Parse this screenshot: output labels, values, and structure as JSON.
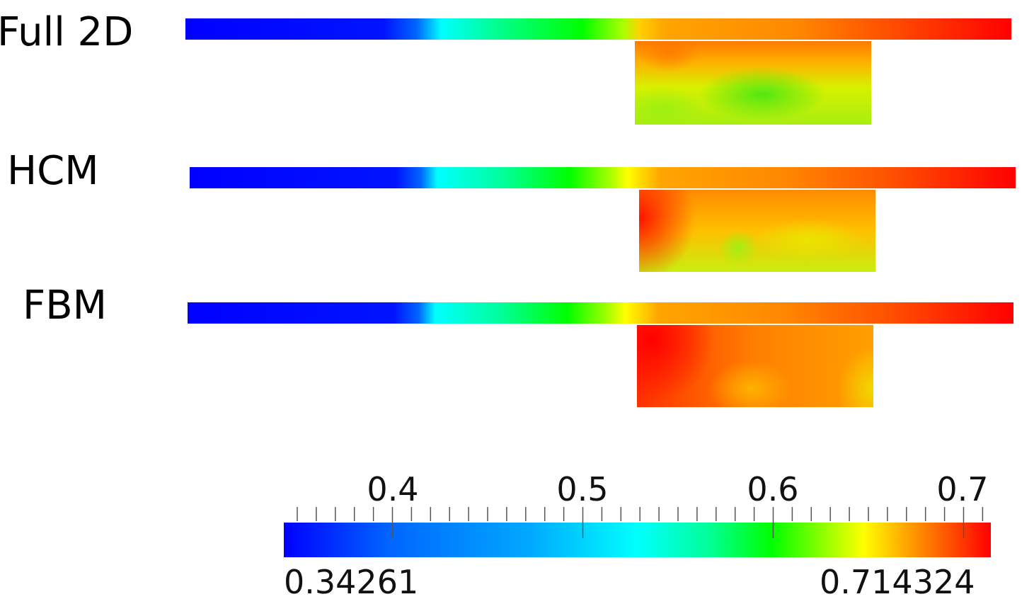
{
  "rows": [
    {
      "label": "Full 2D"
    },
    {
      "label": "HCM"
    },
    {
      "label": "FBM"
    }
  ],
  "colorbar": {
    "min_label": "0.34261",
    "max_label": "0.714324",
    "tick_labels": [
      "0.4",
      "0.5",
      "0.6",
      "0.7"
    ],
    "colormap": [
      "#0000ff",
      "#0080ff",
      "#00ffff",
      "#00ff00",
      "#ffff00",
      "#ffa500",
      "#ff0000"
    ]
  }
}
